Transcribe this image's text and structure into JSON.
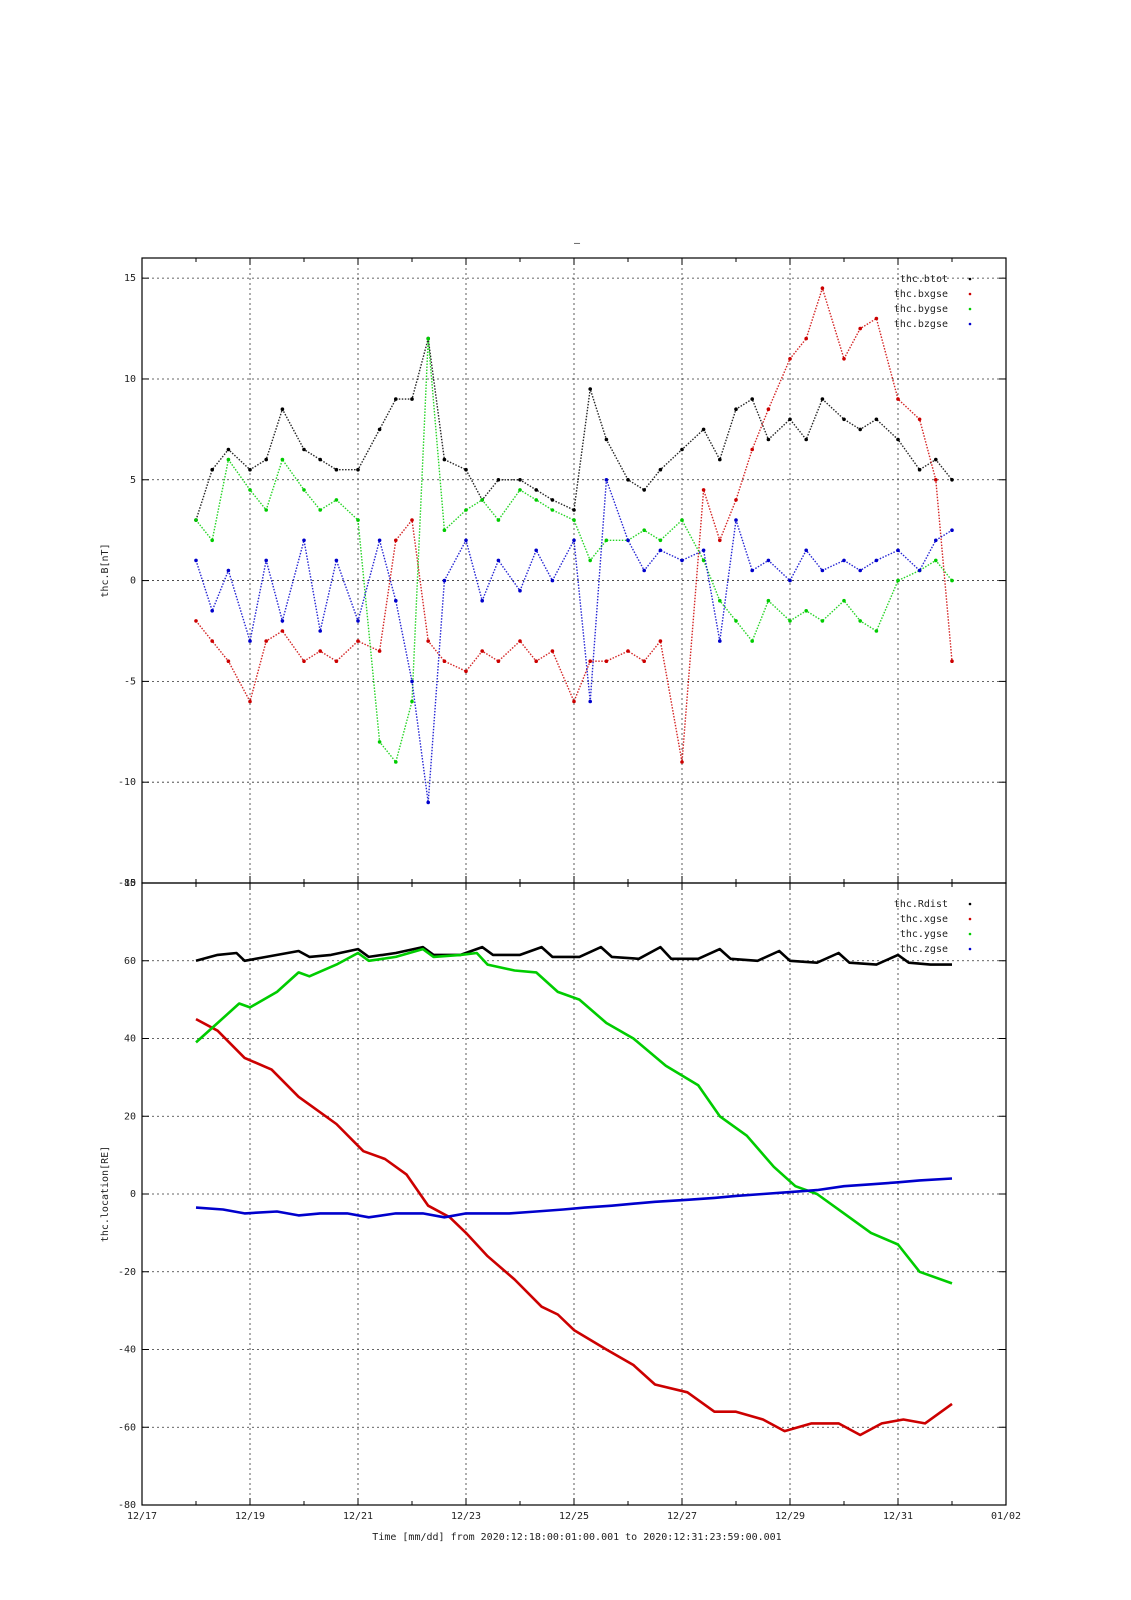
{
  "figure": {
    "title_mark": "–",
    "time_label": "Time [mm/dd]  from 2020:12:18:00:01:00.001  to  2020:12:31:23:59:00.001"
  },
  "chart_data": [
    {
      "type": "scatter",
      "ylabel": "thc.B[nT]",
      "xlim": [
        "12/17",
        "01/02"
      ],
      "ylim": [
        -15,
        16
      ],
      "x_ticks": [
        "12/17",
        "12/19",
        "12/21",
        "12/23",
        "12/25",
        "12/27",
        "12/29",
        "12/31",
        "01/02"
      ],
      "y_ticks": [
        -15,
        -10,
        -5,
        0,
        5,
        10,
        15
      ],
      "grid": true,
      "legend_position": "top-right",
      "x_day_offset_range": [
        1.0,
        15.0
      ],
      "series": [
        {
          "name": "thc.btot",
          "color": "#000000",
          "day": [
            1.0,
            1.3,
            1.6,
            2.0,
            2.3,
            2.6,
            3.0,
            3.3,
            3.6,
            4.0,
            4.4,
            4.7,
            5.0,
            5.3,
            5.6,
            6.0,
            6.3,
            6.6,
            7.0,
            7.3,
            7.6,
            8.0,
            8.3,
            8.6,
            9.0,
            9.3,
            9.6,
            10.0,
            10.4,
            10.7,
            11.0,
            11.3,
            11.6,
            12.0,
            12.3,
            12.6,
            13.0,
            13.3,
            13.6,
            14.0,
            14.4,
            14.7,
            15.0
          ],
          "values": [
            3.0,
            5.5,
            6.5,
            5.5,
            6.0,
            8.5,
            6.5,
            6.0,
            5.5,
            5.5,
            7.5,
            9.0,
            9.0,
            12.0,
            6.0,
            5.5,
            4.0,
            5.0,
            5.0,
            4.5,
            4.0,
            3.5,
            9.5,
            7.0,
            5.0,
            4.5,
            5.5,
            6.5,
            7.5,
            6.0,
            8.5,
            9.0,
            7.0,
            8.0,
            7.0,
            9.0,
            8.0,
            7.5,
            8.0,
            7.0,
            5.5,
            6.0,
            5.0
          ]
        },
        {
          "name": "thc.bxgse",
          "color": "#cc0000",
          "day": [
            1.0,
            1.3,
            1.6,
            2.0,
            2.3,
            2.6,
            3.0,
            3.3,
            3.6,
            4.0,
            4.4,
            4.7,
            5.0,
            5.3,
            5.6,
            6.0,
            6.3,
            6.6,
            7.0,
            7.3,
            7.6,
            8.0,
            8.3,
            8.6,
            9.0,
            9.3,
            9.6,
            10.0,
            10.4,
            10.7,
            11.0,
            11.3,
            11.6,
            12.0,
            12.3,
            12.6,
            13.0,
            13.3,
            13.6,
            14.0,
            14.4,
            14.7,
            15.0
          ],
          "values": [
            -2.0,
            -3.0,
            -4.0,
            -6.0,
            -3.0,
            -2.5,
            -4.0,
            -3.5,
            -4.0,
            -3.0,
            -3.5,
            2.0,
            3.0,
            -3.0,
            -4.0,
            -4.5,
            -3.5,
            -4.0,
            -3.0,
            -4.0,
            -3.5,
            -6.0,
            -4.0,
            -4.0,
            -3.5,
            -4.0,
            -3.0,
            -9.0,
            4.5,
            2.0,
            4.0,
            6.5,
            8.5,
            11.0,
            12.0,
            14.5,
            11.0,
            12.5,
            13.0,
            9.0,
            8.0,
            5.0,
            -4.0
          ]
        },
        {
          "name": "thc.bygse",
          "color": "#00cc00",
          "day": [
            1.0,
            1.3,
            1.6,
            2.0,
            2.3,
            2.6,
            3.0,
            3.3,
            3.6,
            4.0,
            4.4,
            4.7,
            5.0,
            5.3,
            5.6,
            6.0,
            6.3,
            6.6,
            7.0,
            7.3,
            7.6,
            8.0,
            8.3,
            8.6,
            9.0,
            9.3,
            9.6,
            10.0,
            10.4,
            10.7,
            11.0,
            11.3,
            11.6,
            12.0,
            12.3,
            12.6,
            13.0,
            13.3,
            13.6,
            14.0,
            14.4,
            14.7,
            15.0
          ],
          "values": [
            3.0,
            2.0,
            6.0,
            4.5,
            3.5,
            6.0,
            4.5,
            3.5,
            4.0,
            3.0,
            -8.0,
            -9.0,
            -6.0,
            12.0,
            2.5,
            3.5,
            4.0,
            3.0,
            4.5,
            4.0,
            3.5,
            3.0,
            1.0,
            2.0,
            2.0,
            2.5,
            2.0,
            3.0,
            1.0,
            -1.0,
            -2.0,
            -3.0,
            -1.0,
            -2.0,
            -1.5,
            -2.0,
            -1.0,
            -2.0,
            -2.5,
            0.0,
            0.5,
            1.0,
            0.0
          ]
        },
        {
          "name": "thc.bzgse",
          "color": "#0000cc",
          "day": [
            1.0,
            1.3,
            1.6,
            2.0,
            2.3,
            2.6,
            3.0,
            3.3,
            3.6,
            4.0,
            4.4,
            4.7,
            5.0,
            5.3,
            5.6,
            6.0,
            6.3,
            6.6,
            7.0,
            7.3,
            7.6,
            8.0,
            8.3,
            8.6,
            9.0,
            9.3,
            9.6,
            10.0,
            10.4,
            10.7,
            11.0,
            11.3,
            11.6,
            12.0,
            12.3,
            12.6,
            13.0,
            13.3,
            13.6,
            14.0,
            14.4,
            14.7,
            15.0
          ],
          "values": [
            1.0,
            -1.5,
            0.5,
            -3.0,
            1.0,
            -2.0,
            2.0,
            -2.5,
            1.0,
            -2.0,
            2.0,
            -1.0,
            -5.0,
            -11.0,
            0.0,
            2.0,
            -1.0,
            1.0,
            -0.5,
            1.5,
            0.0,
            2.0,
            -6.0,
            5.0,
            2.0,
            0.5,
            1.5,
            1.0,
            1.5,
            -3.0,
            3.0,
            0.5,
            1.0,
            0.0,
            1.5,
            0.5,
            1.0,
            0.5,
            1.0,
            1.5,
            0.5,
            2.0,
            2.5
          ]
        }
      ]
    },
    {
      "type": "line",
      "ylabel": "thc.location[RE]",
      "xlim": [
        "12/17",
        "01/02"
      ],
      "ylim": [
        -80,
        80
      ],
      "x_ticks": [
        "12/17",
        "12/19",
        "12/21",
        "12/23",
        "12/25",
        "12/27",
        "12/29",
        "12/31",
        "01/02"
      ],
      "y_ticks": [
        -80,
        -60,
        -40,
        -20,
        0,
        20,
        40,
        60,
        80
      ],
      "grid": true,
      "legend_position": "top-right",
      "series": [
        {
          "name": "thc.Rdist",
          "color": "#000000",
          "day": [
            1.0,
            1.4,
            1.75,
            1.9,
            2.3,
            2.9,
            3.1,
            3.5,
            4.0,
            4.2,
            4.7,
            5.2,
            5.4,
            5.9,
            6.3,
            6.5,
            7.0,
            7.4,
            7.6,
            8.1,
            8.5,
            8.7,
            9.2,
            9.6,
            9.8,
            10.3,
            10.7,
            10.9,
            11.4,
            11.8,
            12.0,
            12.5,
            12.9,
            13.1,
            13.6,
            14.0,
            14.2,
            14.6,
            15.0
          ],
          "values": [
            60,
            61.5,
            62.0,
            60,
            61,
            62.5,
            61,
            61.5,
            63,
            61,
            62,
            63.5,
            61.5,
            61.5,
            63.5,
            61.5,
            61.5,
            63.5,
            61,
            61,
            63.5,
            61,
            60.5,
            63.5,
            60.5,
            60.5,
            63,
            60.5,
            60,
            62.5,
            60,
            59.5,
            62,
            59.5,
            59,
            61.5,
            59.5,
            59,
            59
          ]
        },
        {
          "name": "thc.xgse",
          "color": "#cc0000",
          "day": [
            1.0,
            1.4,
            1.9,
            2.4,
            2.9,
            3.1,
            3.6,
            4.1,
            4.5,
            4.9,
            5.3,
            5.7,
            6.0,
            6.4,
            6.9,
            7.4,
            7.7,
            8.0,
            8.6,
            9.1,
            9.5,
            10.1,
            10.6,
            11.0,
            11.5,
            11.9,
            12.4,
            12.9,
            13.3,
            13.7,
            14.1,
            14.5,
            15.0
          ],
          "values": [
            45,
            42,
            35,
            32,
            25,
            23,
            18,
            11,
            9,
            5,
            -3,
            -6,
            -10,
            -16,
            -22,
            -29,
            -31,
            -35,
            -40,
            -44,
            -49,
            -51,
            -56,
            -56,
            -58,
            -61,
            -59,
            -59,
            -62,
            -59,
            -58,
            -59,
            -54
          ]
        },
        {
          "name": "thc.ygse",
          "color": "#00cc00",
          "day": [
            1.0,
            1.4,
            1.8,
            2.0,
            2.5,
            2.9,
            3.1,
            3.6,
            4.0,
            4.2,
            4.7,
            5.2,
            5.4,
            5.9,
            6.2,
            6.4,
            6.9,
            7.3,
            7.7,
            8.1,
            8.6,
            9.1,
            9.7,
            10.3,
            10.7,
            11.2,
            11.7,
            12.1,
            12.5,
            13.0,
            13.5,
            14.0,
            14.4,
            15.0
          ],
          "values": [
            39,
            44,
            49,
            48,
            52,
            57,
            56,
            59,
            62,
            60,
            61,
            63,
            61,
            61.5,
            62,
            59,
            57.5,
            57,
            52,
            50,
            44,
            40,
            33,
            28,
            20,
            15,
            7,
            2,
            0,
            -5,
            -10,
            -13,
            -20,
            -23
          ]
        },
        {
          "name": "thc.zgse",
          "color": "#0000cc",
          "day": [
            1.0,
            1.5,
            1.9,
            2.5,
            2.9,
            3.3,
            3.8,
            4.2,
            4.7,
            5.2,
            5.6,
            6.0,
            6.4,
            6.8,
            7.3,
            7.8,
            8.2,
            8.7,
            9.1,
            9.5,
            10.1,
            10.6,
            11.0,
            11.5,
            12.0,
            12.5,
            13.0,
            13.5,
            14.0,
            14.4,
            15.0
          ],
          "values": [
            -3.5,
            -4,
            -5,
            -4.5,
            -5.5,
            -5,
            -5,
            -6,
            -5,
            -5,
            -6,
            -5,
            -5,
            -5,
            -4.5,
            -4,
            -3.5,
            -3,
            -2.5,
            -2,
            -1.5,
            -1,
            -0.5,
            0,
            0.5,
            1,
            2,
            2.5,
            3,
            3.5,
            4
          ]
        }
      ]
    }
  ]
}
